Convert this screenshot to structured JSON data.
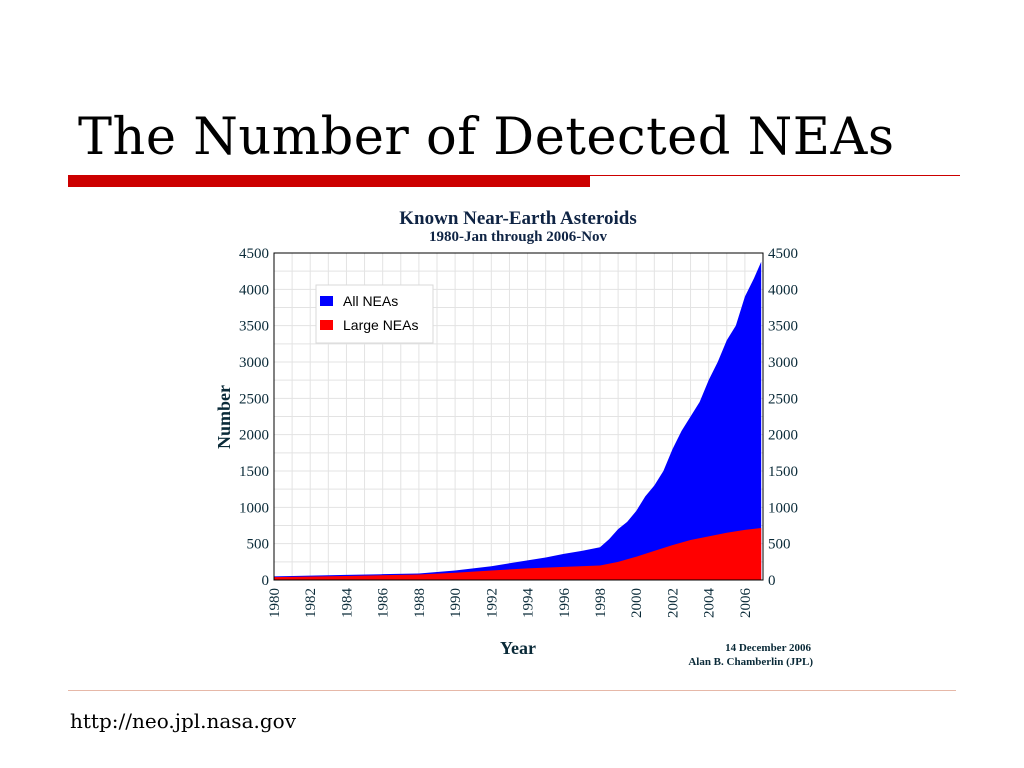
{
  "slide": {
    "title": "The Number of Detected NEAs",
    "footer_url": "http://neo.jpl.nasa.gov",
    "accent_color": "#cc0000"
  },
  "chart_data": {
    "type": "area",
    "title": "Known Near-Earth Asteroids",
    "subtitle": "1980-Jan through 2006-Nov",
    "xlabel": "Year",
    "ylabel": "Number",
    "xlim": [
      1980,
      2007
    ],
    "ylim": [
      0,
      4500
    ],
    "x_ticks": [
      "1980",
      "1982",
      "1984",
      "1986",
      "1988",
      "1990",
      "1992",
      "1994",
      "1996",
      "1998",
      "2000",
      "2002",
      "2004",
      "2006"
    ],
    "y_ticks": [
      0,
      500,
      1000,
      1500,
      2000,
      2500,
      3000,
      3500,
      4000,
      4500
    ],
    "grid": true,
    "legend_position": "top-left",
    "credit_lines": [
      "14 December 2006",
      "Alan B. Chamberlin (JPL)"
    ],
    "series": [
      {
        "name": "All NEAs",
        "color": "#0000ff",
        "points": [
          [
            1980,
            50
          ],
          [
            1982,
            60
          ],
          [
            1984,
            70
          ],
          [
            1986,
            80
          ],
          [
            1988,
            90
          ],
          [
            1989,
            110
          ],
          [
            1990,
            130
          ],
          [
            1991,
            160
          ],
          [
            1992,
            190
          ],
          [
            1993,
            230
          ],
          [
            1994,
            270
          ],
          [
            1995,
            310
          ],
          [
            1996,
            360
          ],
          [
            1997,
            400
          ],
          [
            1998,
            450
          ],
          [
            1998.5,
            560
          ],
          [
            1999,
            700
          ],
          [
            1999.5,
            800
          ],
          [
            2000,
            950
          ],
          [
            2000.5,
            1150
          ],
          [
            2001,
            1300
          ],
          [
            2001.5,
            1500
          ],
          [
            2002,
            1800
          ],
          [
            2002.5,
            2050
          ],
          [
            2003,
            2250
          ],
          [
            2003.5,
            2450
          ],
          [
            2004,
            2750
          ],
          [
            2004.5,
            3000
          ],
          [
            2005,
            3300
          ],
          [
            2005.5,
            3500
          ],
          [
            2006,
            3900
          ],
          [
            2006.5,
            4150
          ],
          [
            2006.9,
            4380
          ]
        ]
      },
      {
        "name": "Large NEAs",
        "color": "#ff0000",
        "points": [
          [
            1980,
            40
          ],
          [
            1984,
            55
          ],
          [
            1988,
            75
          ],
          [
            1990,
            100
          ],
          [
            1992,
            130
          ],
          [
            1994,
            160
          ],
          [
            1996,
            180
          ],
          [
            1998,
            200
          ],
          [
            1999,
            250
          ],
          [
            2000,
            320
          ],
          [
            2001,
            400
          ],
          [
            2002,
            480
          ],
          [
            2003,
            550
          ],
          [
            2004,
            600
          ],
          [
            2005,
            650
          ],
          [
            2006,
            690
          ],
          [
            2006.9,
            715
          ]
        ]
      }
    ]
  }
}
